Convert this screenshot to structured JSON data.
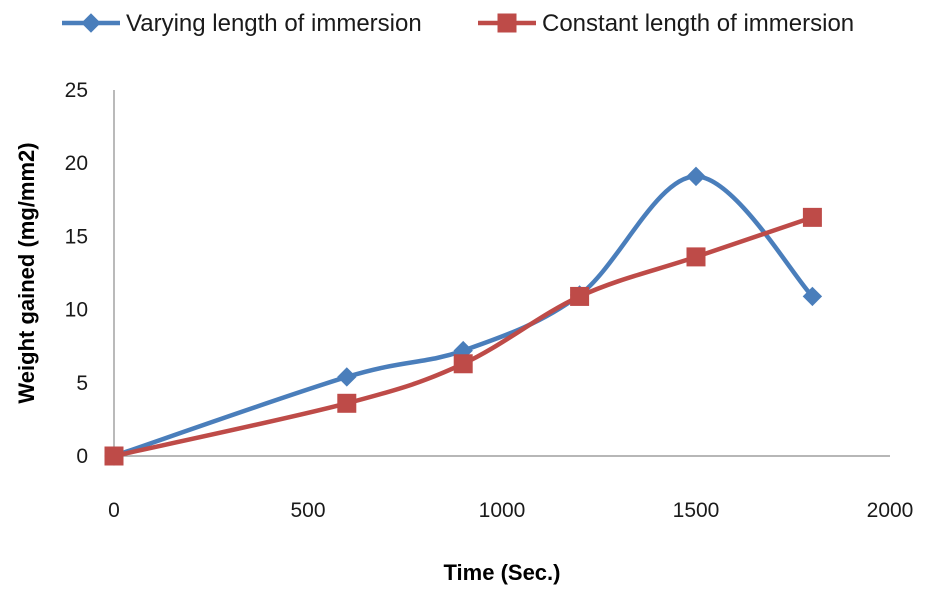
{
  "chart_data": {
    "type": "line",
    "xlabel": "Time (Sec.)",
    "ylabel": "Weight gained (mg/mm2)",
    "xlim": [
      0,
      2000
    ],
    "ylim": [
      0,
      25
    ],
    "xticks": [
      "0",
      "500",
      "1000",
      "1500",
      "2000"
    ],
    "yticks": [
      "0",
      "5",
      "10",
      "15",
      "20",
      "25"
    ],
    "grid": false,
    "legend_position": "top",
    "smooth": true,
    "series": [
      {
        "name": "Varying length of immersion",
        "color": "#4a7ebb",
        "marker": "diamond",
        "x": [
          0,
          600,
          900,
          1200,
          1500,
          1800
        ],
        "y": [
          0,
          5.4,
          7.2,
          11.0,
          19.1,
          10.9
        ]
      },
      {
        "name": "Constant length of immersion",
        "color": "#be4b48",
        "marker": "square",
        "x": [
          0,
          600,
          900,
          1200,
          1500,
          1800
        ],
        "y": [
          0,
          3.6,
          6.3,
          10.9,
          13.6,
          16.3
        ]
      }
    ]
  }
}
